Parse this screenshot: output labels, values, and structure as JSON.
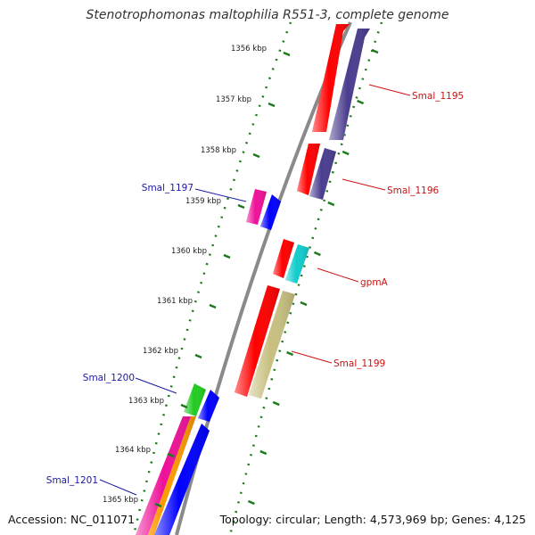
{
  "title": "Stenotrophomonas maltophilia R551-3, complete genome",
  "footer": {
    "accession": "Accession: NC_011071",
    "summary": "Topology: circular; Length: 4,573,969 bp; Genes: 4,125"
  },
  "ticks": [
    "1356 kbp",
    "1357 kbp",
    "1358 kbp",
    "1359 kbp",
    "1360 kbp",
    "1361 kbp",
    "1362 kbp",
    "1363 kbp",
    "1364 kbp",
    "1365 kbp"
  ],
  "genes": [
    {
      "label": "Smal_1195",
      "strand": "forward",
      "color": "#cc1111"
    },
    {
      "label": "Smal_1196",
      "strand": "forward",
      "color": "#cc1111"
    },
    {
      "label": "Smal_1197",
      "strand": "reverse",
      "color": "#1a1aa0"
    },
    {
      "label": "gpmA",
      "strand": "forward",
      "color": "#cc1111"
    },
    {
      "label": "Smal_1199",
      "strand": "forward",
      "color": "#cc1111"
    },
    {
      "label": "Smal_1200",
      "strand": "reverse",
      "color": "#1a1aa0"
    },
    {
      "label": "Smal_1201",
      "strand": "reverse",
      "color": "#1a1aa0"
    }
  ],
  "colors": {
    "backbone": "#8a8a8a",
    "tick": "#1a7a1a",
    "red": "#ff0000",
    "navy": "#4a3d8f",
    "blue": "#0000ff",
    "magenta": "#ee1199",
    "green": "#22cc22",
    "cyan": "#11cccc",
    "khaki": "#c8c080",
    "orange": "#ff9900"
  }
}
